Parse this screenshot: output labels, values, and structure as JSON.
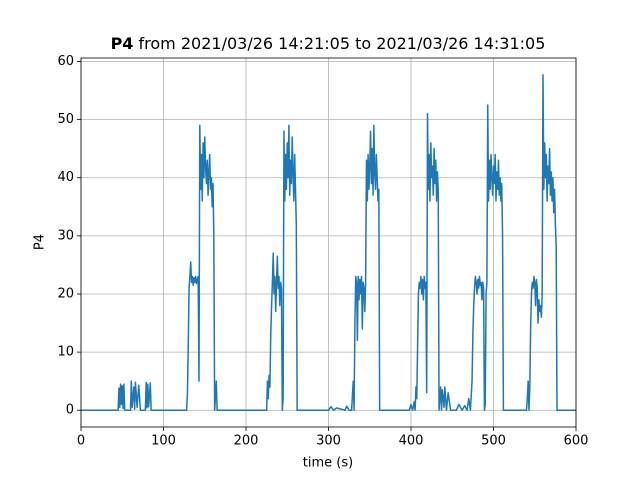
{
  "chart_data": {
    "type": "line",
    "title": {
      "bold": "P4",
      "text": "from 2021/03/26 14:21:05 to 2021/03/26 14:31:05"
    },
    "xlabel": "time (s)",
    "ylabel": "P4",
    "color": "#1f77b4",
    "grid": true,
    "xlim": [
      0,
      600
    ],
    "xticks": [
      0,
      100,
      200,
      300,
      400,
      500,
      600
    ],
    "ylim": [
      -2.885,
      60.6
    ],
    "yticks": [
      0,
      10,
      20,
      30,
      40,
      50,
      60
    ],
    "x": [
      0,
      45,
      46,
      47,
      48,
      49,
      50,
      51,
      52,
      53,
      58,
      60,
      61,
      62,
      64,
      65,
      66,
      68,
      70,
      72,
      78,
      79,
      80,
      81,
      82,
      84,
      85,
      86,
      128,
      129,
      130,
      131,
      132,
      133,
      134,
      135,
      136,
      137,
      138,
      139,
      140,
      141,
      142,
      143,
      144,
      145,
      146,
      147,
      148,
      149,
      150,
      151,
      152,
      153,
      154,
      155,
      156,
      157,
      158,
      159,
      160,
      161,
      162,
      164,
      165,
      166,
      225,
      226,
      227,
      228,
      229,
      230,
      231,
      232,
      233,
      234,
      235,
      236,
      237,
      238,
      239,
      240,
      241,
      242,
      243,
      244,
      245,
      246,
      247,
      248,
      249,
      250,
      251,
      252,
      253,
      254,
      255,
      256,
      257,
      258,
      259,
      260,
      261,
      262,
      300,
      303,
      306,
      310,
      320,
      322,
      325,
      328,
      330,
      331,
      332,
      333,
      334,
      335,
      336,
      337,
      338,
      339,
      340,
      341,
      342,
      343,
      344,
      345,
      346,
      347,
      348,
      349,
      350,
      351,
      352,
      353,
      354,
      355,
      356,
      357,
      358,
      359,
      360,
      361,
      362,
      370,
      380,
      398,
      400,
      402,
      404,
      405,
      406,
      407,
      408,
      409,
      410,
      411,
      412,
      413,
      414,
      415,
      416,
      417,
      418,
      419,
      420,
      421,
      422,
      423,
      424,
      425,
      426,
      427,
      428,
      429,
      430,
      431,
      432,
      433,
      434,
      436,
      437,
      438,
      440,
      441,
      443,
      445,
      448,
      450,
      455,
      458,
      462,
      465,
      468,
      470,
      472,
      474,
      475,
      476,
      477,
      478,
      479,
      480,
      481,
      482,
      483,
      484,
      485,
      486,
      487,
      488,
      489,
      490,
      491,
      492,
      493,
      494,
      495,
      496,
      497,
      498,
      499,
      500,
      501,
      502,
      503,
      504,
      505,
      506,
      507,
      508,
      509,
      510,
      511,
      512,
      520,
      530,
      540,
      541,
      542,
      543,
      544,
      545,
      546,
      547,
      548,
      549,
      550,
      551,
      552,
      553,
      554,
      555,
      556,
      557,
      558,
      559,
      560,
      561,
      562,
      563,
      564,
      565,
      566,
      567,
      568,
      569,
      570,
      571,
      572,
      573,
      574,
      575,
      576,
      577,
      578,
      590,
      600
    ],
    "values": [
      0,
      0,
      3.8,
      0.5,
      4.5,
      1,
      4.2,
      0.3,
      4.5,
      0,
      0,
      0,
      5,
      0.5,
      4,
      0.2,
      4.8,
      0.5,
      4.3,
      0,
      0,
      4.8,
      0.4,
      4.5,
      0.6,
      4.7,
      0,
      0,
      0,
      3,
      11,
      21,
      23,
      25.5,
      22,
      23,
      21.5,
      22.8,
      22,
      23,
      21.8,
      22.5,
      23,
      5,
      49,
      38,
      44,
      36,
      46,
      40,
      47,
      42,
      39,
      43,
      37,
      41,
      44,
      38,
      40,
      35,
      39,
      30,
      0,
      5,
      0,
      0,
      0,
      5,
      2,
      6,
      4,
      13,
      18,
      22,
      27,
      20,
      23,
      17,
      22,
      26.5,
      21,
      23,
      18,
      22,
      21,
      0,
      2,
      48,
      36,
      44,
      38,
      46,
      40,
      49,
      37,
      43,
      39,
      47,
      41,
      36,
      44,
      38,
      32,
      0,
      0,
      0.6,
      0,
      0.4,
      0,
      0.7,
      0,
      0,
      5,
      0,
      15,
      23,
      22,
      12,
      23,
      19,
      22.5,
      20,
      23,
      14,
      22,
      21,
      17,
      22,
      43,
      36,
      44,
      38,
      42,
      48,
      39,
      45,
      37,
      49,
      41,
      38,
      44,
      40,
      36,
      38,
      0,
      0,
      0,
      0,
      1,
      0,
      1.5,
      0,
      4,
      2,
      11,
      20,
      22,
      21,
      23,
      20,
      22.5,
      19,
      23,
      21,
      22,
      3,
      51,
      38,
      44,
      36,
      46,
      40,
      42,
      37,
      45,
      39,
      43,
      36,
      41,
      38,
      0,
      4,
      0,
      3.5,
      0.5,
      4,
      0,
      3,
      0,
      0,
      0,
      1,
      0,
      0.8,
      0,
      2,
      0,
      5,
      13,
      18,
      21,
      23,
      22,
      20,
      22.5,
      21,
      23,
      21.5,
      22,
      19,
      22,
      21,
      0,
      1,
      20,
      22,
      52.5,
      36,
      43,
      38,
      44,
      40,
      37,
      42,
      39,
      44,
      36,
      41,
      38,
      43,
      37,
      40,
      36,
      39,
      30,
      0,
      0,
      0,
      0,
      2,
      5,
      0,
      4,
      14,
      20,
      22,
      21,
      23,
      22,
      18,
      22.5,
      21,
      15,
      19,
      17,
      18,
      16,
      20,
      57.7,
      38,
      46,
      40,
      44,
      36,
      42,
      39,
      45,
      37,
      41,
      36,
      40,
      34,
      38,
      32,
      28,
      0,
      0,
      0,
      0
    ]
  }
}
